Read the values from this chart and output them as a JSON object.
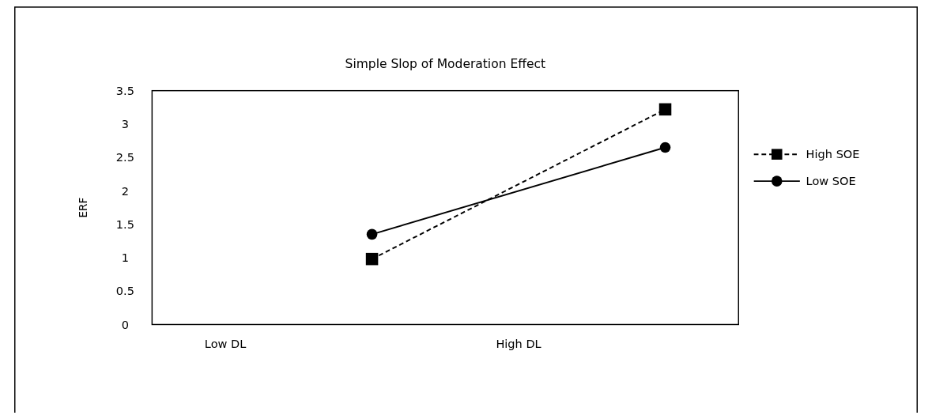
{
  "chart_data": {
    "type": "line",
    "title": "Simple Slop of Moderation Effect",
    "ylabel": "ERF",
    "categories": [
      "Low DL",
      null,
      "High DL",
      null
    ],
    "ylim": [
      0,
      3.5
    ],
    "yticks": [
      0,
      0.5,
      1,
      1.5,
      2,
      2.5,
      3,
      3.5
    ],
    "grid": false,
    "legend": "right",
    "series": [
      {
        "name": "High SOE",
        "color": "#000000",
        "values": [
          null,
          0.98,
          null,
          3.22
        ],
        "line_style": "dashed",
        "marker": "square"
      },
      {
        "name": "Low SOE",
        "color": "#000000",
        "values": [
          null,
          1.35,
          null,
          2.65
        ],
        "line_style": "solid",
        "marker": "circle"
      }
    ]
  }
}
